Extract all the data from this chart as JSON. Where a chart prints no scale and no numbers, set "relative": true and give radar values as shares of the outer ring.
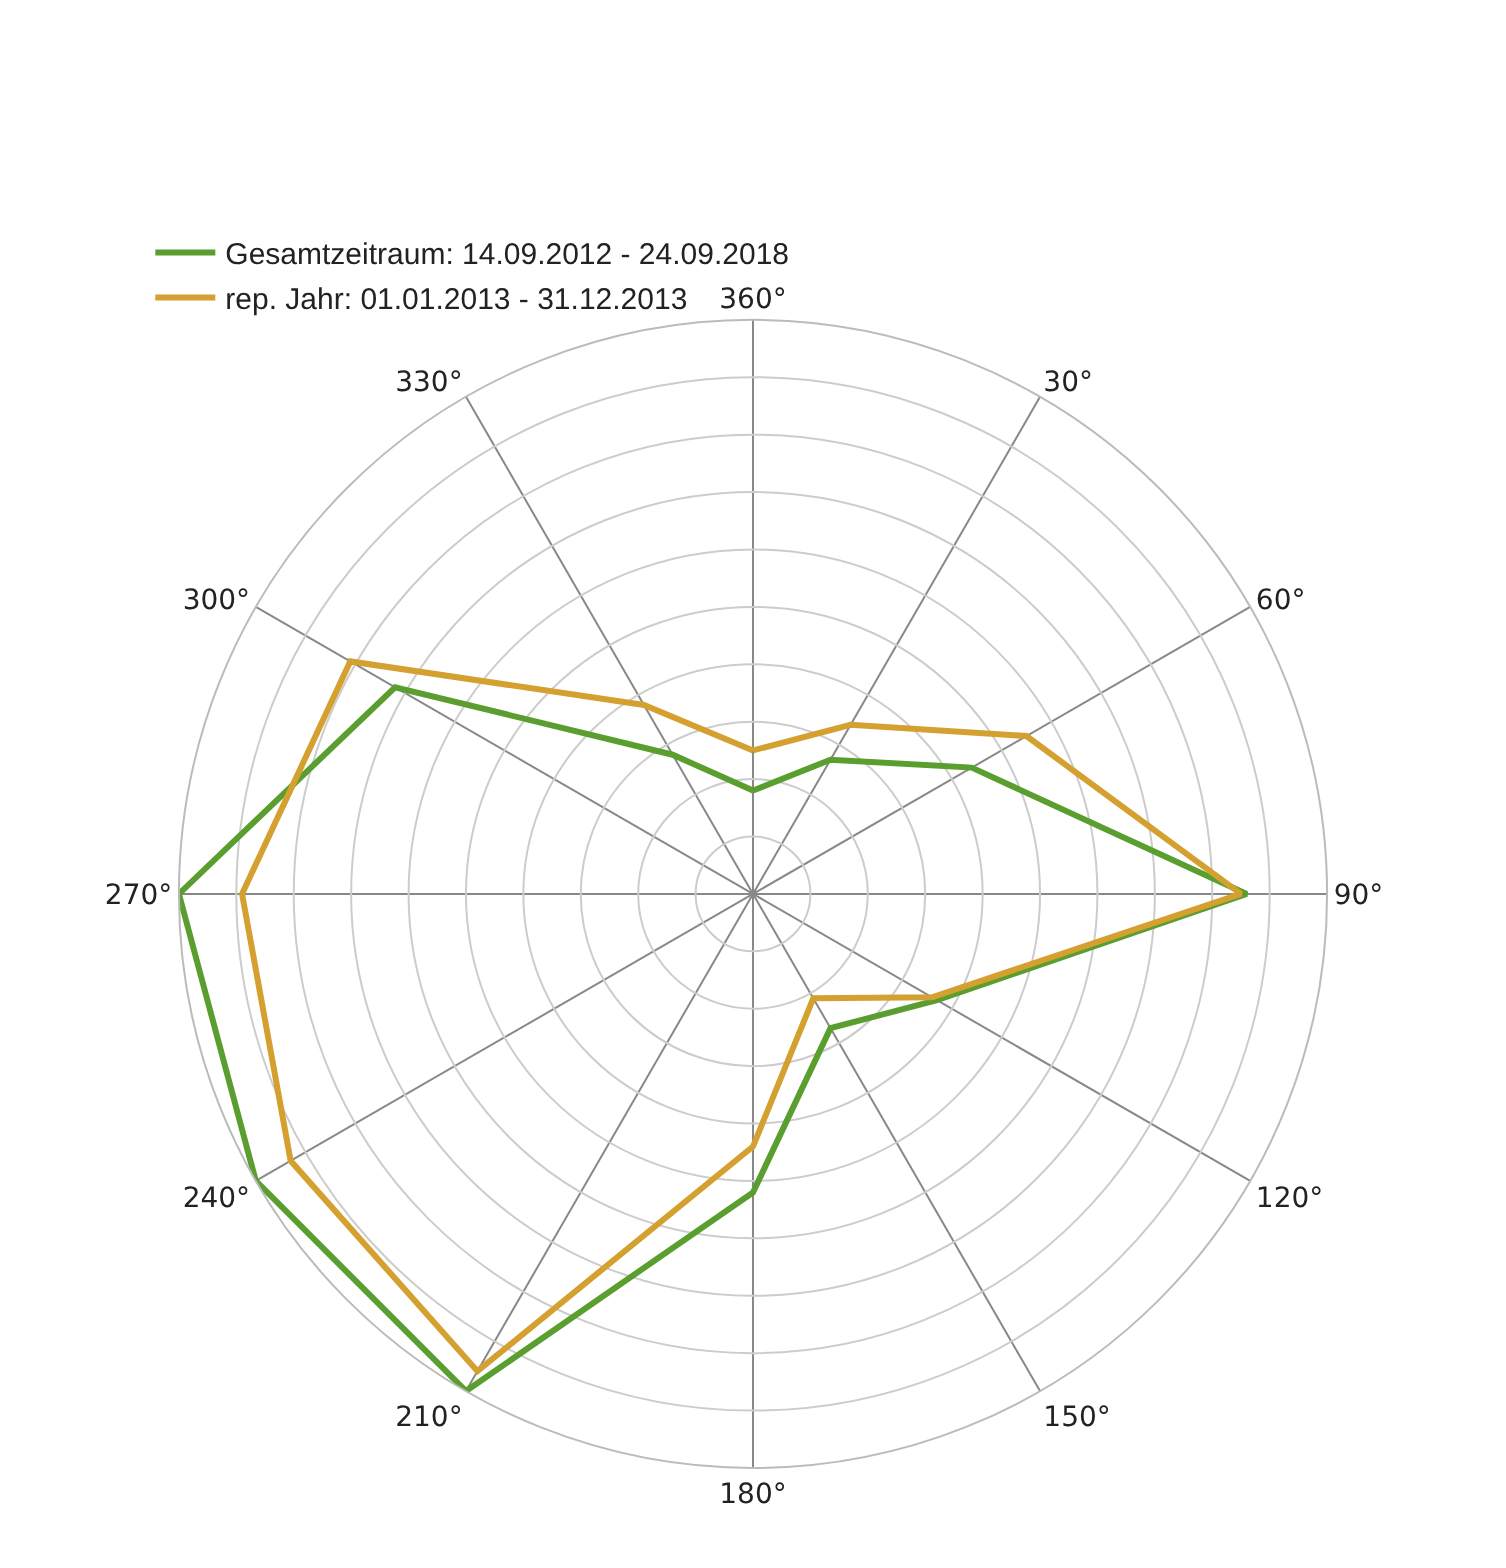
{
  "chart_data": {
    "type": "radar",
    "relative": true,
    "categories": [
      "360°",
      "30°",
      "60°",
      "90°",
      "120°",
      "150°",
      "180°",
      "210°",
      "240°",
      "270°",
      "300°",
      "330°"
    ],
    "series": [
      {
        "name": "Gesamtzeitraum: 14.09.2012 - 24.09.2018",
        "color": "#5a9e2f",
        "values": [
          0.18,
          0.27,
          0.44,
          0.86,
          0.37,
          0.27,
          0.52,
          1.0,
          1.0,
          1.0,
          0.72,
          0.28
        ]
      },
      {
        "name": "rep. Jahr: 01.01.2013 - 31.12.2013",
        "color": "#d4a030",
        "values": [
          0.25,
          0.34,
          0.55,
          0.85,
          0.36,
          0.21,
          0.44,
          0.96,
          0.93,
          0.89,
          0.81,
          0.38
        ]
      }
    ],
    "grid": true,
    "legend": "top left",
    "marker": "none",
    "line_style": "solid"
  }
}
